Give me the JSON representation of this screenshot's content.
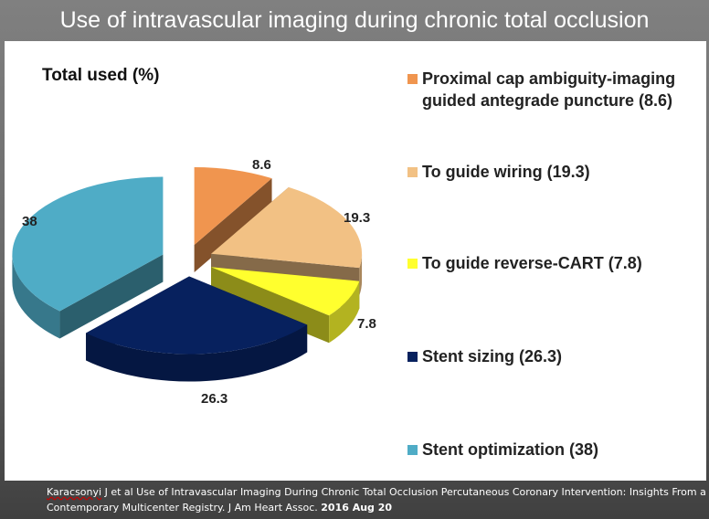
{
  "title": "Use of intravascular imaging during chronic total occlusion",
  "chart_data": {
    "type": "pie",
    "title": "Total used (%)",
    "categories": [
      "Proximal cap ambiguity-imaging guided antegrade puncture (8.6)",
      "To guide wiring (19.3)",
      "To guide reverse-CART (7.8)",
      "Stent sizing (26.3)",
      "Stent optimization (38)"
    ],
    "values": [
      8.6,
      19.3,
      7.8,
      26.3,
      38
    ],
    "data_labels": [
      "8.6",
      "19.3",
      "7.8",
      "26.3",
      "38"
    ],
    "colors": [
      "#f0954f",
      "#f2c184",
      "#ffff2e",
      "#07215e",
      "#4facc6"
    ],
    "legend": "right"
  },
  "citation": {
    "author": "Karacsonyi",
    "text": " J et al Use of Intravascular Imaging During Chronic Total Occlusion Percutaneous Coronary Intervention: Insights From a Contemporary Multicenter Registry. J Am Heart Assoc. ",
    "date": "2016 Aug 20"
  }
}
